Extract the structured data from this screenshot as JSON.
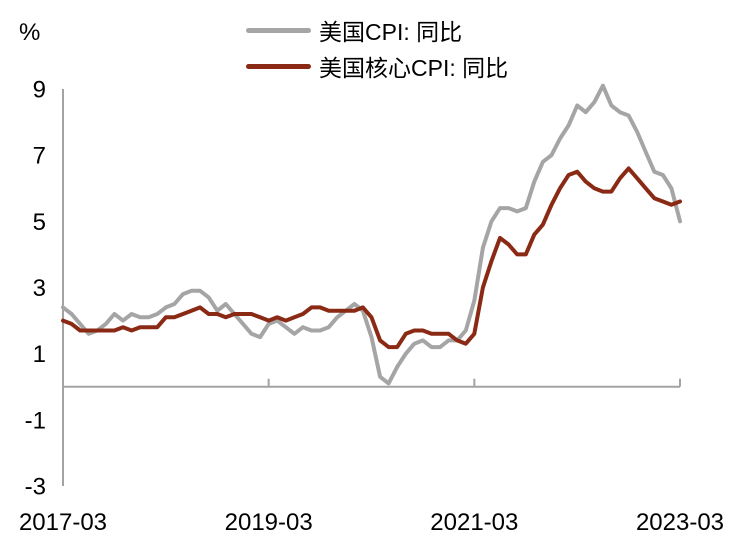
{
  "chart_data": {
    "type": "line",
    "ylabel": "%",
    "ylim": [
      -3,
      9
    ],
    "yticks": [
      9,
      7,
      5,
      3,
      1,
      -1,
      -3
    ],
    "xticks": [
      "2017-03",
      "2019-03",
      "2021-03",
      "2023-03"
    ],
    "grid": false,
    "legend_position": "top-center",
    "axis_color": "#A3A3A3",
    "x": [
      "2017-03",
      "2017-04",
      "2017-05",
      "2017-06",
      "2017-07",
      "2017-08",
      "2017-09",
      "2017-10",
      "2017-11",
      "2017-12",
      "2018-01",
      "2018-02",
      "2018-03",
      "2018-04",
      "2018-05",
      "2018-06",
      "2018-07",
      "2018-08",
      "2018-09",
      "2018-10",
      "2018-11",
      "2018-12",
      "2019-01",
      "2019-02",
      "2019-03",
      "2019-04",
      "2019-05",
      "2019-06",
      "2019-07",
      "2019-08",
      "2019-09",
      "2019-10",
      "2019-11",
      "2019-12",
      "2020-01",
      "2020-02",
      "2020-03",
      "2020-04",
      "2020-05",
      "2020-06",
      "2020-07",
      "2020-08",
      "2020-09",
      "2020-10",
      "2020-11",
      "2020-12",
      "2021-01",
      "2021-02",
      "2021-03",
      "2021-04",
      "2021-05",
      "2021-06",
      "2021-07",
      "2021-08",
      "2021-09",
      "2021-10",
      "2021-11",
      "2021-12",
      "2022-01",
      "2022-02",
      "2022-03",
      "2022-04",
      "2022-05",
      "2022-06",
      "2022-07",
      "2022-08",
      "2022-09",
      "2022-10",
      "2022-11",
      "2022-12",
      "2023-01",
      "2023-02",
      "2023-03"
    ],
    "series": [
      {
        "name": "美国CPI: 同比",
        "color": "#A5A5A5",
        "values": [
          2.4,
          2.2,
          1.9,
          1.6,
          1.7,
          1.9,
          2.2,
          2.0,
          2.2,
          2.1,
          2.1,
          2.2,
          2.4,
          2.5,
          2.8,
          2.9,
          2.9,
          2.7,
          2.3,
          2.5,
          2.2,
          1.9,
          1.6,
          1.5,
          1.9,
          2.0,
          1.8,
          1.6,
          1.8,
          1.7,
          1.7,
          1.8,
          2.1,
          2.3,
          2.5,
          2.3,
          1.5,
          0.3,
          0.1,
          0.6,
          1.0,
          1.3,
          1.4,
          1.2,
          1.2,
          1.4,
          1.4,
          1.7,
          2.6,
          4.2,
          5.0,
          5.4,
          5.4,
          5.3,
          5.4,
          6.2,
          6.8,
          7.0,
          7.5,
          7.9,
          8.5,
          8.3,
          8.6,
          9.1,
          8.5,
          8.3,
          8.2,
          7.7,
          7.1,
          6.5,
          6.4,
          6.0,
          5.0
        ]
      },
      {
        "name": "美国核心CPI: 同比",
        "color": "#8A2A15",
        "values": [
          2.0,
          1.9,
          1.7,
          1.7,
          1.7,
          1.7,
          1.7,
          1.8,
          1.7,
          1.8,
          1.8,
          1.8,
          2.1,
          2.1,
          2.2,
          2.3,
          2.4,
          2.2,
          2.2,
          2.1,
          2.2,
          2.2,
          2.2,
          2.1,
          2.0,
          2.1,
          2.0,
          2.1,
          2.2,
          2.4,
          2.4,
          2.3,
          2.3,
          2.3,
          2.3,
          2.4,
          2.1,
          1.4,
          1.2,
          1.2,
          1.6,
          1.7,
          1.7,
          1.6,
          1.6,
          1.6,
          1.4,
          1.3,
          1.6,
          3.0,
          3.8,
          4.5,
          4.3,
          4.0,
          4.0,
          4.6,
          4.9,
          5.5,
          6.0,
          6.4,
          6.5,
          6.2,
          6.0,
          5.9,
          5.9,
          6.3,
          6.6,
          6.3,
          6.0,
          5.7,
          5.6,
          5.5,
          5.6
        ]
      }
    ]
  }
}
